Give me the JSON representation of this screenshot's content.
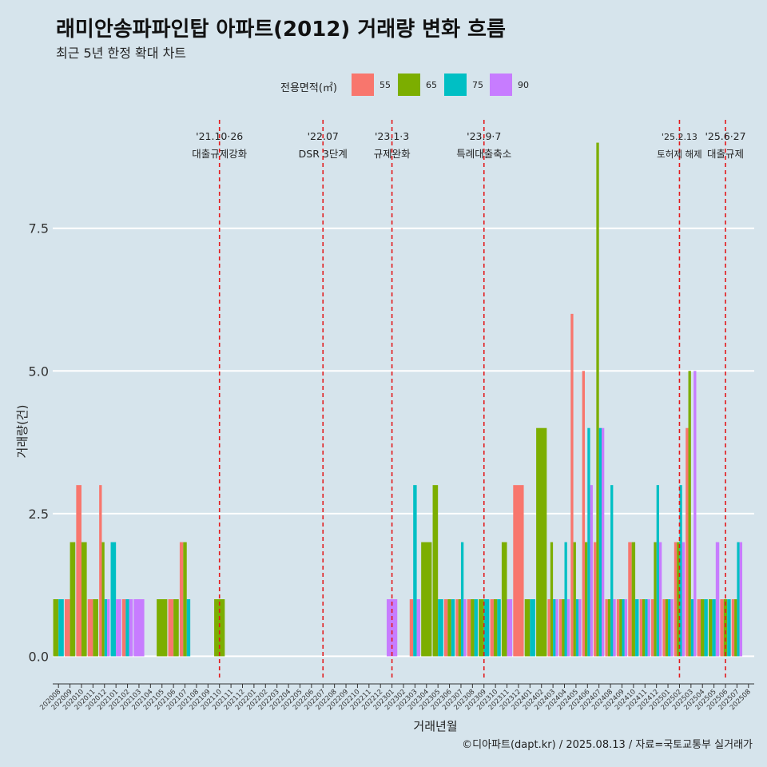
{
  "title": "래미안송파파인탑 아파트(2012) 거래량 변화 흐름",
  "subtitle": "최근 5년 한정 확대 차트",
  "caption": "©디아파트(dapt.kr) / 2025.08.13 / 자료=국토교통부 실거래가",
  "colors": {
    "background": "#d6e4ec",
    "gridline": "#ffffff",
    "event_line": "#e31a1c"
  },
  "chart_data": {
    "type": "bar",
    "xlabel": "거래년월",
    "ylabel": "거래량(건)",
    "ylim": [
      -0.4,
      9.4
    ],
    "yticks": [
      0,
      2.5,
      5,
      7.5
    ],
    "ytick_labels": [
      "0.0",
      "2.5",
      "5.0",
      "7.5"
    ],
    "legend_title": "전용면적(㎡)",
    "legend_position": "top",
    "grid": true,
    "categories": [
      "202008",
      "202009",
      "202010",
      "202011",
      "202012",
      "202101",
      "202102",
      "202103",
      "202104",
      "202105",
      "202106",
      "202107",
      "202108",
      "202109",
      "202110",
      "202111",
      "202112",
      "202201",
      "202202",
      "202203",
      "202204",
      "202205",
      "202206",
      "202207",
      "202208",
      "202209",
      "202210",
      "202211",
      "202212",
      "202301",
      "202302",
      "202303",
      "202304",
      "202305",
      "202306",
      "202307",
      "202308",
      "202309",
      "202310",
      "202311",
      "202312",
      "202401",
      "202402",
      "202403",
      "202404",
      "202405",
      "202406",
      "202407",
      "202408",
      "202409",
      "202410",
      "202411",
      "202412",
      "202501",
      "202502",
      "202503",
      "202504",
      "202505",
      "202506",
      "202507",
      "202508"
    ],
    "series": [
      {
        "name": "55",
        "color": "#f8766d",
        "values": [
          0,
          1,
          3,
          1,
          3,
          0,
          1,
          0,
          0,
          0,
          1,
          2,
          0,
          0,
          0,
          0,
          0,
          0,
          0,
          0,
          0,
          0,
          0,
          0,
          0,
          0,
          0,
          0,
          0,
          0,
          0,
          1,
          0,
          0,
          1,
          1,
          1,
          0,
          1,
          0,
          3,
          0,
          0,
          1,
          1,
          6,
          5,
          2,
          1,
          1,
          2,
          1,
          1,
          1,
          2,
          4,
          1,
          0,
          1,
          1,
          0
        ]
      },
      {
        "name": "65",
        "color": "#7cae00",
        "values": [
          1,
          2,
          2,
          1,
          2,
          0,
          0,
          0,
          0,
          1,
          1,
          2,
          0,
          0,
          1,
          0,
          0,
          0,
          0,
          0,
          0,
          0,
          0,
          0,
          0,
          0,
          0,
          0,
          0,
          0,
          0,
          0,
          2,
          3,
          1,
          1,
          1,
          1,
          1,
          2,
          0,
          1,
          4,
          2,
          1,
          2,
          2,
          9,
          1,
          1,
          2,
          1,
          2,
          1,
          2,
          5,
          1,
          1,
          1,
          1,
          0
        ]
      },
      {
        "name": "75",
        "color": "#00bfc4",
        "values": [
          1,
          0,
          0,
          0,
          1,
          2,
          1,
          0,
          0,
          0,
          0,
          1,
          0,
          0,
          0,
          0,
          0,
          0,
          0,
          0,
          0,
          0,
          0,
          0,
          0,
          0,
          0,
          0,
          0,
          0,
          0,
          3,
          0,
          1,
          1,
          2,
          1,
          1,
          1,
          0,
          0,
          1,
          0,
          1,
          2,
          1,
          4,
          4,
          3,
          1,
          1,
          1,
          3,
          1,
          3,
          1,
          1,
          1,
          1,
          2,
          0
        ]
      },
      {
        "name": "90",
        "color": "#c77cff",
        "values": [
          0,
          0,
          0,
          0,
          1,
          1,
          1,
          1,
          0,
          0,
          0,
          0,
          0,
          0,
          0,
          0,
          0,
          0,
          0,
          0,
          0,
          0,
          0,
          0,
          0,
          0,
          0,
          0,
          0,
          1,
          0,
          1,
          0,
          0,
          0,
          1,
          0,
          0,
          0,
          1,
          0,
          0,
          0,
          1,
          1,
          1,
          3,
          4,
          1,
          1,
          0,
          1,
          2,
          1,
          2,
          5,
          0,
          2,
          0,
          2,
          0
        ]
      }
    ],
    "events": [
      {
        "category": "202110",
        "date": "'21.10·26",
        "label": "대출규제강화"
      },
      {
        "category": "202207",
        "date": "'22.07",
        "label": "DSR 3단계"
      },
      {
        "category": "202301",
        "date": "'23.1·3",
        "label": "규제완화"
      },
      {
        "category": "202309",
        "date": "'23.9·7",
        "label": "특례대출축소"
      },
      {
        "category": "202502",
        "date": "'25.2.13",
        "label": "토허제 해제"
      },
      {
        "category": "202506",
        "date": "'25.6·27",
        "label": "대출규제"
      }
    ]
  }
}
